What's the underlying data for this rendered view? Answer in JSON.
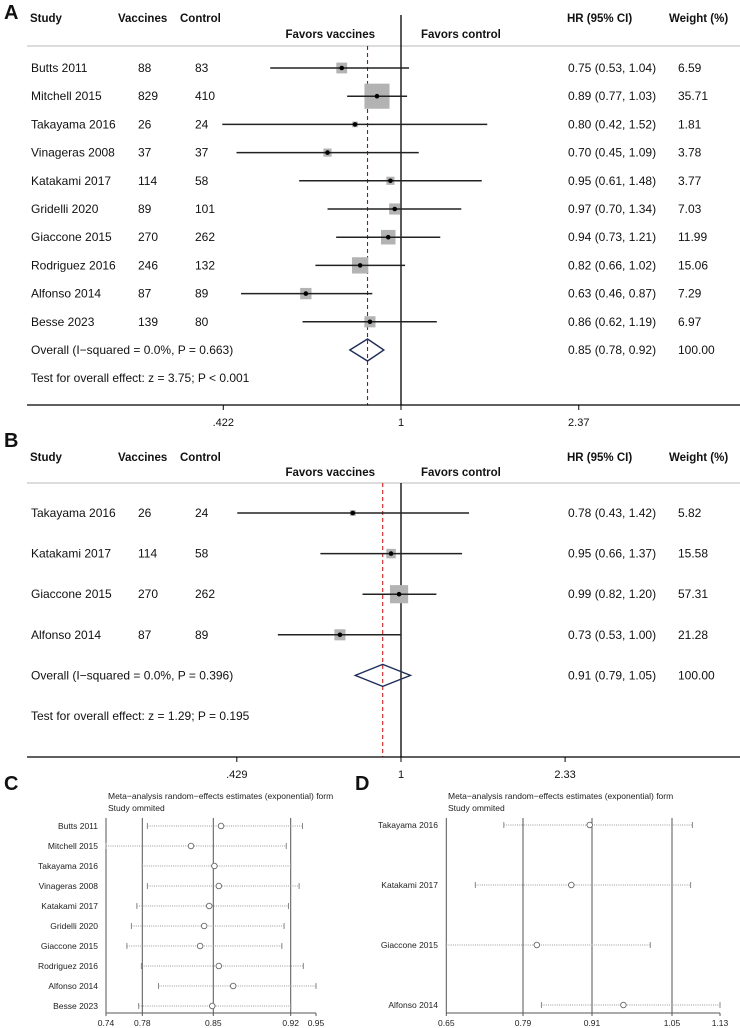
{
  "colors": {
    "square": "#b3b3b3",
    "diamond": "#1f2d5a",
    "dashA": "#8b1a1a",
    "dashB": "#d02020",
    "grid": "#555555"
  },
  "chart_data": [
    {
      "panel": "A",
      "type": "forest",
      "scale": "log",
      "headers": {
        "study": "Study",
        "vaccines": "Vaccines",
        "control": "Control",
        "hr": "HR (95% CI)",
        "weight": "Weight (%)",
        "favors_left": "Favors vaccines",
        "favors_right": "Favors control"
      },
      "rows": [
        {
          "study": "Butts 2011",
          "vaccines": "88",
          "control": "83",
          "hr": 0.75,
          "lo": 0.53,
          "hi": 1.04,
          "hr_text": "0.75 (0.53, 1.04)",
          "weight": "6.59"
        },
        {
          "study": "Mitchell 2015",
          "vaccines": "829",
          "control": "410",
          "hr": 0.89,
          "lo": 0.77,
          "hi": 1.03,
          "hr_text": "0.89 (0.77, 1.03)",
          "weight": "35.71"
        },
        {
          "study": "Takayama 2016",
          "vaccines": "26",
          "control": "24",
          "hr": 0.8,
          "lo": 0.42,
          "hi": 1.52,
          "hr_text": "0.80 (0.42, 1.52)",
          "weight": "1.81"
        },
        {
          "study": "Vinageras 2008",
          "vaccines": "37",
          "control": "37",
          "hr": 0.7,
          "lo": 0.45,
          "hi": 1.09,
          "hr_text": "0.70 (0.45, 1.09)",
          "weight": "3.78"
        },
        {
          "study": "Katakami 2017",
          "vaccines": "114",
          "control": "58",
          "hr": 0.95,
          "lo": 0.61,
          "hi": 1.48,
          "hr_text": "0.95 (0.61, 1.48)",
          "weight": "3.77"
        },
        {
          "study": "Gridelli 2020",
          "vaccines": "89",
          "control": "101",
          "hr": 0.97,
          "lo": 0.7,
          "hi": 1.34,
          "hr_text": "0.97 (0.70, 1.34)",
          "weight": "7.03"
        },
        {
          "study": "Giaccone 2015",
          "vaccines": "270",
          "control": "262",
          "hr": 0.94,
          "lo": 0.73,
          "hi": 1.21,
          "hr_text": "0.94 (0.73, 1.21)",
          "weight": "11.99"
        },
        {
          "study": "Rodriguez 2016",
          "vaccines": "246",
          "control": "132",
          "hr": 0.82,
          "lo": 0.66,
          "hi": 1.02,
          "hr_text": "0.82 (0.66, 1.02)",
          "weight": "15.06"
        },
        {
          "study": "Alfonso 2014",
          "vaccines": "87",
          "control": "89",
          "hr": 0.63,
          "lo": 0.46,
          "hi": 0.87,
          "hr_text": "0.63 (0.46, 0.87)",
          "weight": "7.29"
        },
        {
          "study": "Besse 2023",
          "vaccines": "139",
          "control": "80",
          "hr": 0.86,
          "lo": 0.62,
          "hi": 1.19,
          "hr_text": "0.86 (0.62, 1.19)",
          "weight": "6.97"
        }
      ],
      "overall": {
        "label": "Overall  (I−squared = 0.0%, P = 0.663)",
        "hr": 0.85,
        "lo": 0.78,
        "hi": 0.92,
        "hr_text": "0.85 (0.78, 0.92)",
        "weight": "100.00"
      },
      "test": "Test for overall effect: z = 3.75; P < 0.001",
      "ticks": [
        0.422,
        1,
        2.37
      ],
      "tick_labels": [
        ".422",
        "1",
        "2.37"
      ]
    },
    {
      "panel": "B",
      "type": "forest",
      "scale": "log",
      "headers": {
        "study": "Study",
        "vaccines": "Vaccines",
        "control": "Control",
        "hr": "HR (95% CI)",
        "weight": "Weight (%)",
        "favors_left": "Favors vaccines",
        "favors_right": "Favors control"
      },
      "rows": [
        {
          "study": "Takayama 2016",
          "vaccines": "26",
          "control": "24",
          "hr": 0.78,
          "lo": 0.43,
          "hi": 1.42,
          "hr_text": "0.78 (0.43, 1.42)",
          "weight": "5.82"
        },
        {
          "study": "Katakami 2017",
          "vaccines": "114",
          "control": "58",
          "hr": 0.95,
          "lo": 0.66,
          "hi": 1.37,
          "hr_text": "0.95 (0.66, 1.37)",
          "weight": "15.58"
        },
        {
          "study": "Giaccone 2015",
          "vaccines": "270",
          "control": "262",
          "hr": 0.99,
          "lo": 0.82,
          "hi": 1.2,
          "hr_text": "0.99 (0.82, 1.20)",
          "weight": "57.31"
        },
        {
          "study": "Alfonso 2014",
          "vaccines": "87",
          "control": "89",
          "hr": 0.73,
          "lo": 0.53,
          "hi": 1.0,
          "hr_text": "0.73 (0.53, 1.00)",
          "weight": "21.28"
        }
      ],
      "overall": {
        "label": "Overall  (I−squared = 0.0%, P = 0.396)",
        "hr": 0.91,
        "lo": 0.79,
        "hi": 1.05,
        "hr_text": "0.91 (0.79, 1.05)",
        "weight": "100.00"
      },
      "test": "Test for overall effect: z = 1.29; P = 0.195",
      "ticks": [
        0.429,
        1,
        2.33
      ],
      "tick_labels": [
        ".429",
        "1",
        "2.33"
      ]
    },
    {
      "panel": "C",
      "type": "scatter",
      "title": "Meta−analysis random−effects estimates (exponential) form",
      "subtitle": "Study ommited",
      "rows": [
        {
          "study": "Butts 2011",
          "est": 0.857,
          "lo": 0.785,
          "hi": 0.934
        },
        {
          "study": "Mitchell 2015",
          "est": 0.828,
          "lo": 0.74,
          "hi": 0.916
        },
        {
          "study": "Takayama 2016",
          "est": 0.851,
          "lo": 0.78,
          "hi": 0.92
        },
        {
          "study": "Vinageras 2008",
          "est": 0.855,
          "lo": 0.785,
          "hi": 0.93
        },
        {
          "study": "Katakami 2017",
          "est": 0.846,
          "lo": 0.774,
          "hi": 0.918
        },
        {
          "study": "Gridelli 2020",
          "est": 0.841,
          "lo": 0.768,
          "hi": 0.914
        },
        {
          "study": "Giaccone 2015",
          "est": 0.837,
          "lo": 0.763,
          "hi": 0.912
        },
        {
          "study": "Rodriguez 2016",
          "est": 0.855,
          "lo": 0.779,
          "hi": 0.935
        },
        {
          "study": "Alfonso 2014",
          "est": 0.868,
          "lo": 0.796,
          "hi": 0.95
        },
        {
          "study": "Besse 2023",
          "est": 0.849,
          "lo": 0.776,
          "hi": 0.92
        }
      ],
      "ticks": [
        0.74,
        0.78,
        0.85,
        0.92,
        0.95
      ],
      "tick_labels": [
        "0.74",
        "0.78",
        "0.85",
        "0.92",
        "0.95"
      ],
      "reference_lines": [
        0.78,
        0.85,
        0.92
      ]
    },
    {
      "panel": "D",
      "type": "scatter",
      "title": "Meta−analysis random−effects estimates (exponential) form",
      "subtitle": "Study ommited",
      "rows": [
        {
          "study": "Takayama 2016",
          "est": 0.906,
          "lo": 0.755,
          "hi": 1.084
        },
        {
          "study": "Katakami 2017",
          "est": 0.874,
          "lo": 0.703,
          "hi": 1.081
        },
        {
          "study": "Giaccone 2015",
          "est": 0.814,
          "lo": 0.65,
          "hi": 1.012
        },
        {
          "study": "Alfonso 2014",
          "est": 0.965,
          "lo": 0.822,
          "hi": 1.13
        }
      ],
      "ticks": [
        0.65,
        0.79,
        0.91,
        1.05,
        1.13
      ],
      "tick_labels": [
        "0.65",
        "0.79",
        "0.91",
        "1.05",
        "1.13"
      ],
      "reference_lines": [
        0.79,
        0.91,
        1.05
      ]
    }
  ]
}
